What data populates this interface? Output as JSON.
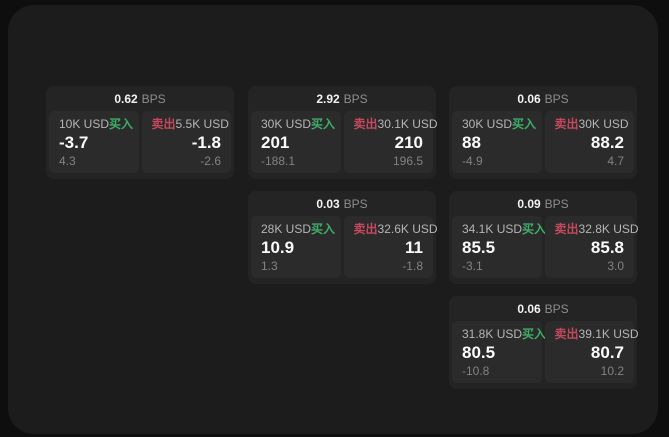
{
  "labels": {
    "bps": "BPS",
    "buy": "买入",
    "sell": "卖出"
  },
  "colors": {
    "buy_green": "#3fae68",
    "sell_red": "#c5485c",
    "panel_bg": "#1c1c1d",
    "card_bg": "#242425",
    "tile_bg": "#2b2b2c",
    "page_bg": "#0e0e0f"
  },
  "cards": [
    {
      "bps": "0.62",
      "buy": {
        "size": "10K USD",
        "price": "-3.7",
        "delta": "4.3"
      },
      "sell": {
        "size": "5.5K USD",
        "price": "-1.8",
        "delta": "-2.6"
      }
    },
    {
      "bps": "2.92",
      "buy": {
        "size": "30K USD",
        "price": "201",
        "delta": "-188.1"
      },
      "sell": {
        "size": "30.1K USD",
        "price": "210",
        "delta": "196.5"
      }
    },
    {
      "bps": "0.06",
      "buy": {
        "size": "30K USD",
        "price": "88",
        "delta": "-4.9"
      },
      "sell": {
        "size": "30K USD",
        "price": "88.2",
        "delta": "4.7"
      }
    },
    {
      "bps": "0.03",
      "buy": {
        "size": "28K USD",
        "price": "10.9",
        "delta": "1.3"
      },
      "sell": {
        "size": "32.6K USD",
        "price": "11",
        "delta": "-1.8"
      }
    },
    {
      "bps": "0.09",
      "buy": {
        "size": "34.1K USD",
        "price": "85.5",
        "delta": "-3.1"
      },
      "sell": {
        "size": "32.8K USD",
        "price": "85.8",
        "delta": "3.0"
      }
    },
    {
      "bps": "0.06",
      "buy": {
        "size": "31.8K USD",
        "price": "80.5",
        "delta": "-10.8"
      },
      "sell": {
        "size": "39.1K USD",
        "price": "80.7",
        "delta": "10.2"
      }
    }
  ]
}
